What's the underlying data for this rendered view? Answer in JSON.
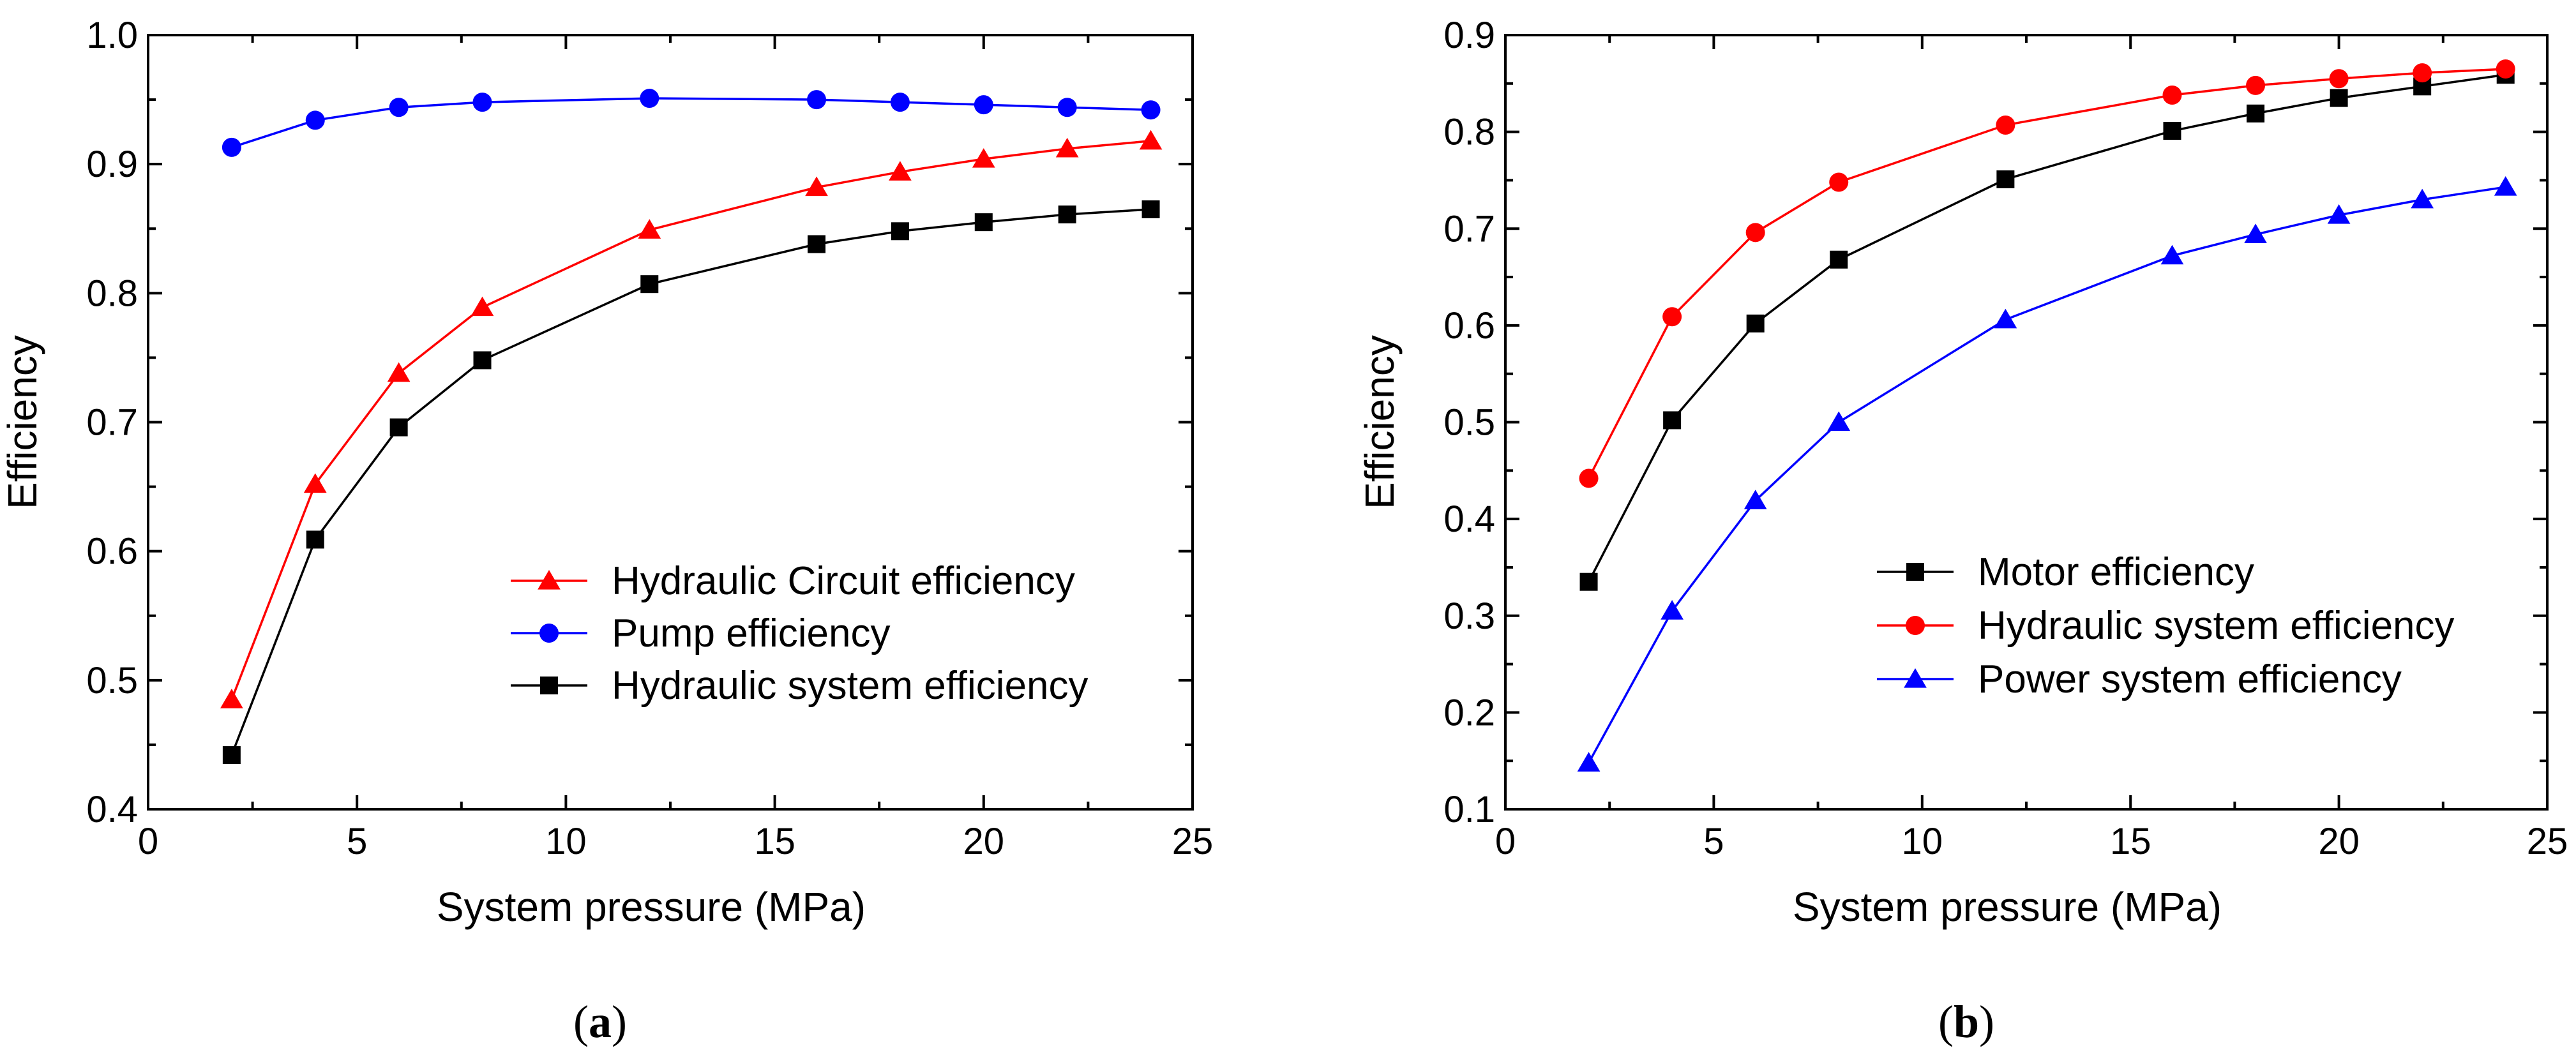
{
  "chart_data": [
    {
      "type": "line",
      "panel_label": "a",
      "xlabel": "System pressure (MPa)",
      "ylabel": "Efficiency",
      "xlim": [
        0,
        25
      ],
      "ylim": [
        0.4,
        1.0
      ],
      "xticks": [
        0,
        5,
        10,
        15,
        20,
        25
      ],
      "yticks": [
        0.4,
        0.5,
        0.6,
        0.7,
        0.8,
        0.9,
        1.0
      ],
      "xtick_labels": [
        "0",
        "5",
        "10",
        "15",
        "20",
        "25"
      ],
      "ytick_labels": [
        "0.4",
        "0.5",
        "0.6",
        "0.7",
        "0.8",
        "0.9",
        "1.0"
      ],
      "legend_position": "lower-right",
      "grid": false,
      "series": [
        {
          "name": "Hydraulic Circuit efficiency",
          "color": "#ff0000",
          "marker": "triangle",
          "x": [
            2,
            4,
            6,
            8,
            12,
            16,
            18,
            20,
            22,
            24
          ],
          "values": [
            0.485,
            0.652,
            0.738,
            0.789,
            0.849,
            0.882,
            0.894,
            0.904,
            0.912,
            0.918
          ]
        },
        {
          "name": "Pump efficiency",
          "color": "#0000ff",
          "marker": "circle",
          "x": [
            2,
            4,
            6,
            8,
            12,
            16,
            18,
            20,
            22,
            24
          ],
          "values": [
            0.913,
            0.934,
            0.944,
            0.948,
            0.951,
            0.95,
            0.948,
            0.946,
            0.944,
            0.942
          ]
        },
        {
          "name": "Hydraulic system efficiency",
          "color": "#000000",
          "marker": "square",
          "x": [
            2,
            4,
            6,
            8,
            12,
            16,
            18,
            20,
            22,
            24
          ],
          "values": [
            0.442,
            0.609,
            0.696,
            0.748,
            0.807,
            0.838,
            0.848,
            0.855,
            0.861,
            0.865
          ]
        }
      ]
    },
    {
      "type": "line",
      "panel_label": "b",
      "xlabel": "System pressure (MPa)",
      "ylabel": "Efficiency",
      "xlim": [
        0,
        25
      ],
      "ylim": [
        0.1,
        0.9
      ],
      "xticks": [
        0,
        5,
        10,
        15,
        20,
        25
      ],
      "yticks": [
        0.1,
        0.2,
        0.3,
        0.4,
        0.5,
        0.6,
        0.7,
        0.8,
        0.9
      ],
      "xtick_labels": [
        "0",
        "5",
        "10",
        "15",
        "20",
        "25"
      ],
      "ytick_labels": [
        "0.1",
        "0.2",
        "0.3",
        "0.4",
        "0.5",
        "0.6",
        "0.7",
        "0.8",
        "0.9"
      ],
      "legend_position": "lower-right",
      "grid": false,
      "series": [
        {
          "name": "Motor efficiency",
          "color": "#000000",
          "marker": "square",
          "x": [
            2,
            4,
            6,
            8,
            12,
            16,
            18,
            20,
            22,
            24
          ],
          "values": [
            0.335,
            0.502,
            0.602,
            0.668,
            0.751,
            0.801,
            0.819,
            0.835,
            0.847,
            0.859
          ]
        },
        {
          "name": "Hydraulic system efficiency",
          "color": "#ff0000",
          "marker": "circle",
          "x": [
            2,
            4,
            6,
            8,
            12,
            16,
            18,
            20,
            22,
            24
          ],
          "values": [
            0.442,
            0.609,
            0.696,
            0.748,
            0.807,
            0.838,
            0.848,
            0.855,
            0.861,
            0.865
          ]
        },
        {
          "name": "Power system efficiency",
          "color": "#0000ff",
          "marker": "triangle",
          "x": [
            2,
            4,
            6,
            8,
            12,
            16,
            18,
            20,
            22,
            24
          ],
          "values": [
            0.148,
            0.305,
            0.419,
            0.5,
            0.606,
            0.672,
            0.694,
            0.714,
            0.73,
            0.743
          ]
        }
      ]
    }
  ]
}
